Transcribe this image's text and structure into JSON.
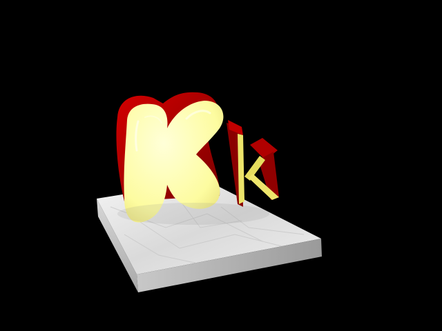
{
  "scene": {
    "background_color": "#000000",
    "letters": [
      {
        "char": "K",
        "case": "uppercase",
        "face_color": "#FFFFA8",
        "extrude_color": "#B00000"
      },
      {
        "char": "k",
        "case": "lowercase",
        "face_color": "#E8E060",
        "extrude_color": "#A00000"
      }
    ],
    "base": {
      "material": "white marble",
      "top_color": "#E4E4E4",
      "side_color": "#BDBDBD"
    }
  }
}
